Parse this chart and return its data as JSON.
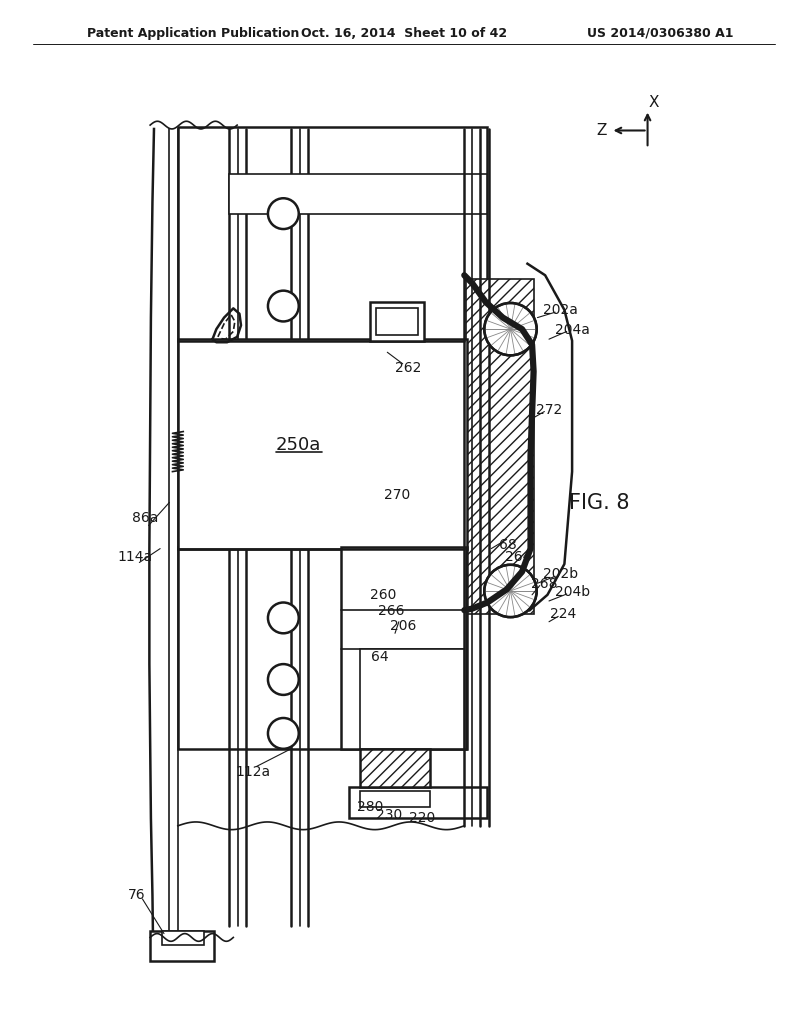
{
  "title_left": "Patent Application Publication",
  "title_mid": "Oct. 16, 2014  Sheet 10 of 42",
  "title_right": "US 2014/0306380 A1",
  "fig_label": "FIG. 8",
  "background": "#ffffff",
  "lc": "#1a1a1a"
}
